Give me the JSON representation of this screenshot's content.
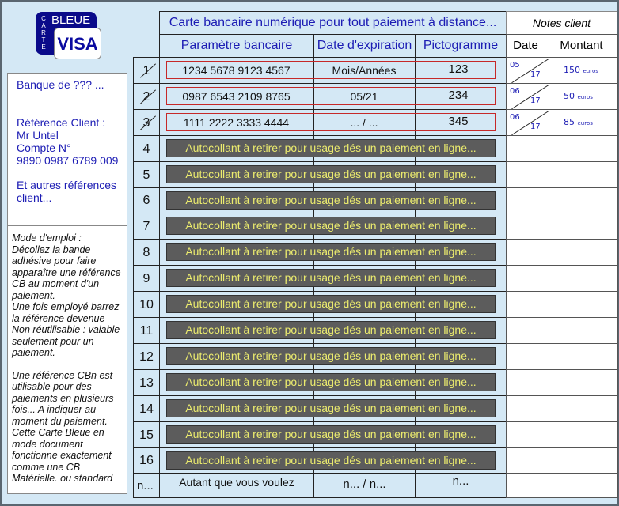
{
  "logo": {
    "carte": "CARTE",
    "bleue": "BLEUE",
    "visa": "VISA"
  },
  "client_panel": {
    "bank": "Banque de ??? ...",
    "ref_label": "Référence Client :",
    "name": "Mr Untel",
    "account_label": "Compte N°",
    "account_number": "9890 0987 6789 009",
    "others": "Et autres références client..."
  },
  "instructions": [
    "Mode d'emploi :",
    "Décollez la bande adhésive pour faire apparaître une référence CB au moment d'un paiement.",
    "Une fois employé barrez la référence devenue Non réutilisable : valable seulement pour un paiement.",
    "",
    "Une référence CBn est utilisable pour des paiements en plusieurs fois... A indiquer au moment du paiement. Cette Carte Bleue en mode document fonctionne exactement comme une CB Matérielle. ou standard"
  ],
  "table": {
    "title": "Carte bancaire numérique pour tout paiement à distance...",
    "headers": {
      "param": "Paramètre bancaire",
      "expiry": "Date d'expiration",
      "picto": "Pictogramme"
    },
    "notes_title": "Notes client",
    "notes_headers": {
      "date": "Date",
      "amount": "Montant"
    },
    "filled_rows": [
      {
        "n": "1",
        "param": "1234 5678 9123 4567",
        "expiry": "Mois/Années",
        "picto": "123",
        "struck": true,
        "note_month": "05",
        "note_year": "17",
        "note_amount": "150",
        "note_unit": "euros"
      },
      {
        "n": "2",
        "param": "0987 6543 2109 8765",
        "expiry": "05/21",
        "picto": "234",
        "struck": true,
        "note_month": "06",
        "note_year": "17",
        "note_amount": "50",
        "note_unit": "euros"
      },
      {
        "n": "3",
        "param": "1111 2222 3333 4444",
        "expiry": "... / ...",
        "picto": "345",
        "struck": true,
        "note_month": "06",
        "note_year": "17",
        "note_amount": "85",
        "note_unit": "euros"
      }
    ],
    "sticker_rows": [
      "4",
      "5",
      "6",
      "7",
      "8",
      "9",
      "10",
      "11",
      "12",
      "13",
      "14",
      "15",
      "16"
    ],
    "sticker_label": "Autocollant à retirer pour usage dés un paiement en ligne...",
    "last_row": {
      "n": "n...",
      "param": "Autant que vous voulez",
      "expiry": "n... / n...",
      "picto": "n..."
    }
  },
  "colors": {
    "background": "#d4e8f5",
    "accent": "#1c1cb4",
    "sticker": "#5c5c5c",
    "sticker_text": "#ecec6e",
    "highlight_border": "#c62828"
  }
}
